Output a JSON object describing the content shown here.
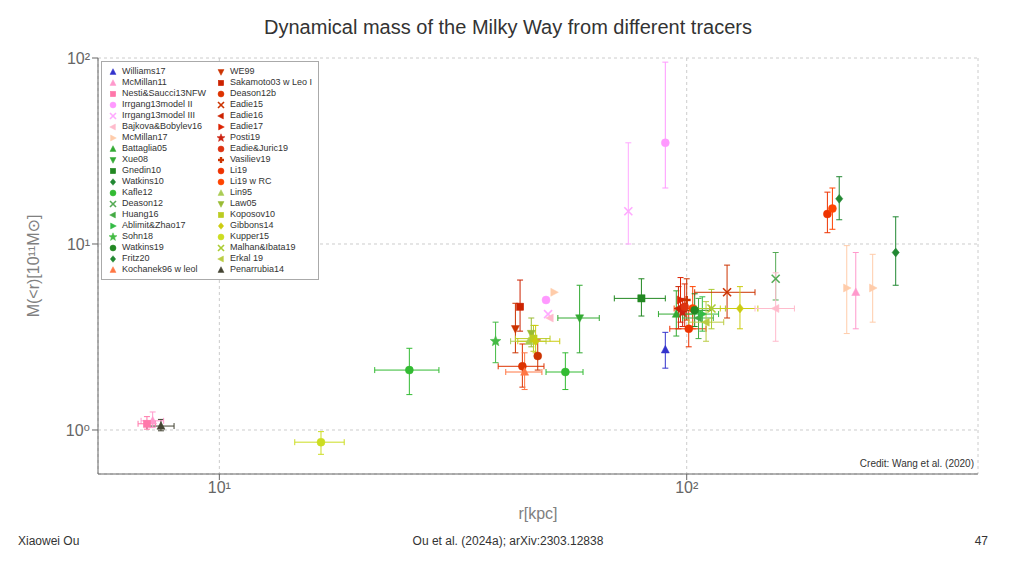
{
  "chart_data": {
    "type": "scatter",
    "title": "Dynamical mass of the Milky Way from different tracers",
    "x_label": "r[kpc]",
    "y_label": "M(<r)[10¹¹M⊙]",
    "annotations": [
      "Xiaowei Ou",
      "Ou et al. (2024a); arXiv:2303.12838",
      "47",
      "Credit: Wang et al. (2020)"
    ],
    "log": true,
    "grid": true,
    "legend": "upper left",
    "xlim": [
      5.5,
      420
    ],
    "xticks": [
      {
        "value": 10,
        "label": "10¹"
      },
      {
        "value": 100,
        "label": "10²"
      }
    ],
    "ylim": [
      0.58,
      100
    ],
    "yticks": [
      {
        "value": 1,
        "label": "10⁰"
      },
      {
        "value": 10,
        "label": "10¹"
      },
      {
        "value": 100,
        "label": "10²"
      }
    ],
    "legend_entries": [
      {
        "name": "Williams17",
        "color": "#3333cc",
        "marker": "triangle-up"
      },
      {
        "name": "McMillan11",
        "color": "#ff99cc",
        "marker": "triangle-up"
      },
      {
        "name": "Nesti&Saucci13NFW",
        "color": "#ff77aa",
        "marker": "square"
      },
      {
        "name": "Irrgang13model II",
        "color": "#ff99ff",
        "marker": "circle"
      },
      {
        "name": "Irrgang13model III",
        "color": "#ffaaff",
        "marker": "x"
      },
      {
        "name": "Bajkova&Bobylev16",
        "color": "#ffbbcc",
        "marker": "triangle-left"
      },
      {
        "name": "McMillan17",
        "color": "#ffccaa",
        "marker": "triangle-right"
      },
      {
        "name": "Battaglia05",
        "color": "#33aa33",
        "marker": "triangle-up"
      },
      {
        "name": "Xue08",
        "color": "#33aa33",
        "marker": "triangle-down"
      },
      {
        "name": "Gnedin10",
        "color": "#228822",
        "marker": "square"
      },
      {
        "name": "Watkins10",
        "color": "#228833",
        "marker": "diamond"
      },
      {
        "name": "Kafle12",
        "color": "#33bb33",
        "marker": "circle"
      },
      {
        "name": "Deason12",
        "color": "#55aa55",
        "marker": "x"
      },
      {
        "name": "Huang16",
        "color": "#44aa44",
        "marker": "triangle-left"
      },
      {
        "name": "Ablimit&Zhao17",
        "color": "#33bb44",
        "marker": "triangle-right"
      },
      {
        "name": "Sohn18",
        "color": "#44bb44",
        "marker": "star"
      },
      {
        "name": "Watkins19",
        "color": "#228822",
        "marker": "circle"
      },
      {
        "name": "Fritz20",
        "color": "#228833",
        "marker": "diamond"
      },
      {
        "name": "Kochanek96 w leol",
        "color": "#ff7744",
        "marker": "triangle-up"
      },
      {
        "name": "WE99",
        "color": "#cc3300",
        "marker": "triangle-down"
      },
      {
        "name": "Sakamoto03 w Leo I",
        "color": "#cc2200",
        "marker": "square"
      },
      {
        "name": "Deason12b",
        "color": "#dd3300",
        "marker": "circle"
      },
      {
        "name": "Eadie15",
        "color": "#cc3300",
        "marker": "x"
      },
      {
        "name": "Eadie16",
        "color": "#cc2200",
        "marker": "triangle-left"
      },
      {
        "name": "Eadie17",
        "color": "#dd2200",
        "marker": "triangle-right"
      },
      {
        "name": "Posti19",
        "color": "#cc2211",
        "marker": "star"
      },
      {
        "name": "Eadie&Juric19",
        "color": "#dd3311",
        "marker": "circle"
      },
      {
        "name": "Vasiliev19",
        "color": "#cc3300",
        "marker": "plus"
      },
      {
        "name": "Li19",
        "color": "#ee3300",
        "marker": "circle"
      },
      {
        "name": "Li19 w RC",
        "color": "#ff4400",
        "marker": "circle"
      },
      {
        "name": "Lin95",
        "color": "#aacc55",
        "marker": "triangle-up"
      },
      {
        "name": "Law05",
        "color": "#99bb33",
        "marker": "triangle-down"
      },
      {
        "name": "Koposov10",
        "color": "#bbcc22",
        "marker": "square"
      },
      {
        "name": "Gibbons14",
        "color": "#cccc11",
        "marker": "diamond"
      },
      {
        "name": "Kupper15",
        "color": "#ccdd22",
        "marker": "circle"
      },
      {
        "name": "Malhan&Ibata19",
        "color": "#aacc33",
        "marker": "x"
      },
      {
        "name": "Erkal 19",
        "color": "#bbcc44",
        "marker": "triangle-left"
      },
      {
        "name": "Penarrubia14",
        "color": "#444433",
        "marker": "triangle-up"
      }
    ],
    "points": [
      {
        "x": 7.5,
        "y": 1.05,
        "x_error": [
          0.5,
          0.5
        ],
        "y_error": [
          0.06,
          0.09
        ],
        "color": "#444433",
        "marker": "triangle-up"
      },
      {
        "x": 7.2,
        "y": 1.12,
        "x_error": [
          0.4,
          0.4
        ],
        "y_error": [
          0.09,
          0.13
        ],
        "color": "#ff99cc",
        "marker": "triangle-up"
      },
      {
        "x": 7.0,
        "y": 1.08,
        "x_error": [
          0.3,
          0.3
        ],
        "y_error": [
          0.07,
          0.1
        ],
        "color": "#ff77aa",
        "marker": "square"
      },
      {
        "x": 16.5,
        "y": 0.86,
        "x_error": [
          2.0,
          2.0
        ],
        "y_error": [
          0.12,
          0.12
        ],
        "color": "#ccdd22",
        "marker": "circle"
      },
      {
        "x": 25.5,
        "y": 2.1,
        "x_error": [
          4.0,
          4.0
        ],
        "y_error": [
          0.55,
          0.65
        ],
        "color": "#33bb33",
        "marker": "circle"
      },
      {
        "x": 39.0,
        "y": 3.0,
        "x_error": [
          0.0,
          0.0
        ],
        "y_error": [
          0.7,
          0.8
        ],
        "color": "#44bb44",
        "marker": "star"
      },
      {
        "x": 43.0,
        "y": 3.5,
        "x_error": [
          0.0,
          0.0
        ],
        "y_error": [
          0.9,
          1.3
        ],
        "color": "#cc3300",
        "marker": "triangle-down"
      },
      {
        "x": 44.0,
        "y": 4.6,
        "x_error": [
          0.0,
          0.0
        ],
        "y_error": [
          1.2,
          1.8
        ],
        "color": "#cc2200",
        "marker": "square"
      },
      {
        "x": 44.5,
        "y": 2.2,
        "x_error": [
          5.0,
          5.0
        ],
        "y_error": [
          0.5,
          0.7
        ],
        "color": "#dd3300",
        "marker": "circle"
      },
      {
        "x": 45.0,
        "y": 2.05,
        "x_error": [
          4.0,
          4.0
        ],
        "y_error": [
          0.4,
          0.55
        ],
        "color": "#ff7744",
        "marker": "triangle-up"
      },
      {
        "x": 46.0,
        "y": 3.0,
        "x_error": [
          4.0,
          4.0
        ],
        "y_error": [
          0.0,
          0.0
        ],
        "color": "#aacc55",
        "marker": "triangle-up"
      },
      {
        "x": 46.5,
        "y": 3.3,
        "x_error": [
          0.0,
          0.0
        ],
        "y_error": [
          0.5,
          0.7
        ],
        "color": "#99bb33",
        "marker": "triangle-down"
      },
      {
        "x": 47.0,
        "y": 3.1,
        "x_error": [
          4.0,
          4.0
        ],
        "y_error": [
          0.45,
          0.55
        ],
        "color": "#bbcc22",
        "marker": "square"
      },
      {
        "x": 47.5,
        "y": 3.0,
        "x_error": [
          4.0,
          6.0
        ],
        "y_error": [
          0.4,
          0.65
        ],
        "color": "#cccc11",
        "marker": "diamond"
      },
      {
        "x": 48.0,
        "y": 2.5,
        "x_error": [
          0.0,
          0.0
        ],
        "y_error": [
          0.4,
          0.55
        ],
        "color": "#cc3300",
        "marker": "circle"
      },
      {
        "x": 50.0,
        "y": 5.0,
        "x_error": [
          0.0,
          0.0
        ],
        "y_error": [
          0.0,
          0.0
        ],
        "color": "#ff99ff",
        "marker": "circle"
      },
      {
        "x": 50.5,
        "y": 4.2,
        "x_error": [
          0.0,
          0.0
        ],
        "y_error": [
          0.0,
          0.0
        ],
        "color": "#ffaaff",
        "marker": "x"
      },
      {
        "x": 51.0,
        "y": 4.0,
        "x_error": [
          0.0,
          0.0
        ],
        "y_error": [
          0.0,
          0.0
        ],
        "color": "#ffbbcc",
        "marker": "triangle-left"
      },
      {
        "x": 52.0,
        "y": 5.5,
        "x_error": [
          0.0,
          0.0
        ],
        "y_error": [
          0.0,
          0.0
        ],
        "color": "#ffccaa",
        "marker": "triangle-right"
      },
      {
        "x": 55.0,
        "y": 2.05,
        "x_error": [
          5.0,
          5.0
        ],
        "y_error": [
          0.4,
          0.55
        ],
        "color": "#33bb33",
        "marker": "circle"
      },
      {
        "x": 59.0,
        "y": 4.0,
        "x_error": [
          6.0,
          6.0
        ],
        "y_error": [
          1.4,
          2.0
        ],
        "color": "#33aa33",
        "marker": "triangle-down"
      },
      {
        "x": 80.0,
        "y": 5.1,
        "x_error": [
          10.0,
          10.0
        ],
        "y_error": [
          1.0,
          1.4
        ],
        "color": "#228822",
        "marker": "square"
      },
      {
        "x": 90.0,
        "y": 2.7,
        "x_error": [
          0.0,
          0.0
        ],
        "y_error": [
          0.55,
          0.65
        ],
        "color": "#3333cc",
        "marker": "triangle-up"
      },
      {
        "x": 95.0,
        "y": 4.2,
        "x_error": [
          8.0,
          8.0
        ],
        "y_error": [
          1.0,
          1.4
        ],
        "color": "#33aa33",
        "marker": "triangle-up"
      },
      {
        "x": 96.0,
        "y": 4.5,
        "x_error": [
          0.0,
          0.0
        ],
        "y_error": [
          1.0,
          1.4
        ],
        "color": "#cc2200",
        "marker": "triangle-left"
      },
      {
        "x": 97.0,
        "y": 5.0,
        "x_error": [
          0.0,
          0.0
        ],
        "y_error": [
          1.2,
          1.6
        ],
        "color": "#dd2200",
        "marker": "triangle-right"
      },
      {
        "x": 98.0,
        "y": 4.3,
        "x_error": [
          0.0,
          0.0
        ],
        "y_error": [
          0.7,
          0.8
        ],
        "color": "#cc2211",
        "marker": "star"
      },
      {
        "x": 99.0,
        "y": 4.6,
        "x_error": [
          0.0,
          0.0
        ],
        "y_error": [
          1.0,
          1.5
        ],
        "color": "#dd3311",
        "marker": "circle"
      },
      {
        "x": 100.0,
        "y": 5.0,
        "x_error": [
          0.0,
          0.0
        ],
        "y_error": [
          1.1,
          1.5
        ],
        "color": "#cc3300",
        "marker": "plus"
      },
      {
        "x": 101.0,
        "y": 3.5,
        "x_error": [
          9.0,
          9.0
        ],
        "y_error": [
          0.7,
          0.9
        ],
        "color": "#ee3300",
        "marker": "circle"
      },
      {
        "x": 103.0,
        "y": 4.5,
        "x_error": [
          9.0,
          9.0
        ],
        "y_error": [
          1.0,
          1.4
        ],
        "color": "#ff4400",
        "marker": "circle"
      },
      {
        "x": 104.0,
        "y": 4.4,
        "x_error": [
          9.0,
          9.0
        ],
        "y_error": [
          0.8,
          1.0
        ],
        "color": "#228822",
        "marker": "circle"
      },
      {
        "x": 106.0,
        "y": 4.0,
        "x_error": [
          8.0,
          8.0
        ],
        "y_error": [
          0.9,
          1.1
        ],
        "color": "#44aa44",
        "marker": "triangle-left"
      },
      {
        "x": 108.0,
        "y": 4.2,
        "x_error": [
          9.0,
          9.0
        ],
        "y_error": [
          0.8,
          1.0
        ],
        "color": "#33bb44",
        "marker": "triangle-right"
      },
      {
        "x": 110.0,
        "y": 3.8,
        "x_error": [
          9.0,
          10.0
        ],
        "y_error": [
          0.8,
          1.1
        ],
        "color": "#bbcc44",
        "marker": "triangle-left"
      },
      {
        "x": 113.0,
        "y": 4.5,
        "x_error": [
          8.0,
          8.0
        ],
        "y_error": [
          1.0,
          1.2
        ],
        "color": "#aacc33",
        "marker": "x"
      },
      {
        "x": 122.0,
        "y": 5.5,
        "x_error": [
          18.0,
          18.0
        ],
        "y_error": [
          1.5,
          2.2
        ],
        "color": "#cc3300",
        "marker": "x"
      },
      {
        "x": 130.0,
        "y": 4.5,
        "x_error": [
          12.0,
          12.0
        ],
        "y_error": [
          1.0,
          1.4
        ],
        "color": "#cccc11",
        "marker": "diamond"
      },
      {
        "x": 155.0,
        "y": 6.5,
        "x_error": [
          0.0,
          0.0
        ],
        "y_error": [
          1.5,
          2.5
        ],
        "color": "#55aa55",
        "marker": "x"
      },
      {
        "x": 200.0,
        "y": 14.5,
        "x_error": [
          0.0,
          0.0
        ],
        "y_error": [
          3.0,
          4.5
        ],
        "color": "#ee3300",
        "marker": "circle"
      },
      {
        "x": 205.0,
        "y": 15.5,
        "x_error": [
          0.0,
          0.0
        ],
        "y_error": [
          3.5,
          4.5
        ],
        "color": "#ff4400",
        "marker": "circle"
      },
      {
        "x": 212.0,
        "y": 17.5,
        "x_error": [
          0.0,
          0.0
        ],
        "y_error": [
          4.0,
          5.5
        ],
        "color": "#228833",
        "marker": "diamond"
      },
      {
        "x": 280.0,
        "y": 9.0,
        "x_error": [
          0.0,
          0.0
        ],
        "y_error": [
          3.0,
          5.0
        ],
        "color": "#228833",
        "marker": "diamond"
      },
      {
        "x": 90.0,
        "y": 35.0,
        "x_error": [
          0.0,
          0.0
        ],
        "y_error": [
          15.0,
          60.0
        ],
        "color": "#ff99ff",
        "marker": "circle"
      },
      {
        "x": 75.0,
        "y": 15.0,
        "x_error": [
          0.0,
          0.0
        ],
        "y_error": [
          5.0,
          20.0
        ],
        "color": "#ffaaff",
        "marker": "x"
      },
      {
        "x": 220.0,
        "y": 5.8,
        "x_error": [
          0.0,
          0.0
        ],
        "y_error": [
          2.5,
          4.0
        ],
        "color": "#ffccaa",
        "marker": "triangle-right"
      },
      {
        "x": 230.0,
        "y": 5.5,
        "x_error": [
          0.0,
          0.0
        ],
        "y_error": [
          2.0,
          3.5
        ],
        "color": "#ff99cc",
        "marker": "triangle-up"
      },
      {
        "x": 155.0,
        "y": 4.5,
        "x_error": [
          15.0,
          15.0
        ],
        "y_error": [
          1.5,
          2.5
        ],
        "color": "#ffbbcc",
        "marker": "triangle-left"
      },
      {
        "x": 250.0,
        "y": 5.8,
        "x_error": [
          0.0,
          0.0
        ],
        "y_error": [
          2.0,
          3.0
        ],
        "color": "#ffccaa",
        "marker": "triangle-right"
      }
    ]
  }
}
